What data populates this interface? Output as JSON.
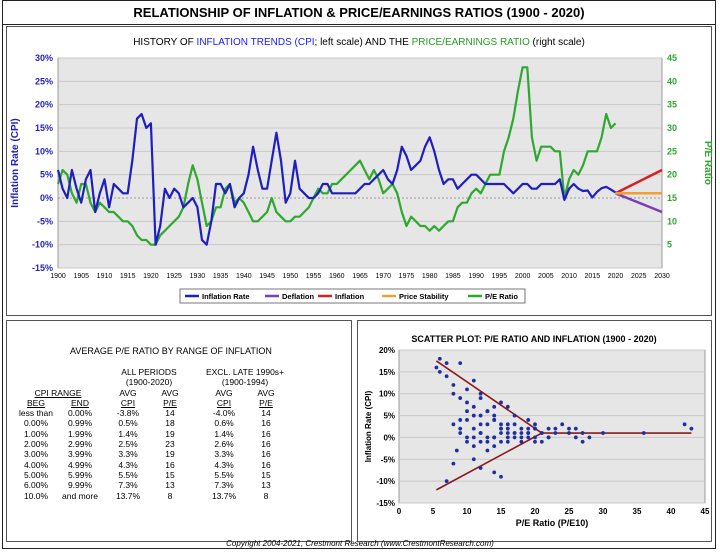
{
  "title": "RELATIONSHIP OF INFLATION & PRICE/EARNINGS RATIOS (1900 - 2020)",
  "history": {
    "subtitle_pre": "HISTORY OF ",
    "subtitle_infl": "INFLATION TRENDS (CPI",
    "subtitle_mid": "; left scale) AND THE ",
    "subtitle_pe": "PRICE/EARNINGS RATIO",
    "subtitle_post": " (right scale)",
    "left_axis_label": "Inflation Rate (CPI)",
    "right_axis_label": "P/E Ratio",
    "legend": [
      "Inflation Rate",
      "Deflation",
      "Inflation",
      "Price Stability",
      "P/E Ratio"
    ]
  },
  "colors": {
    "inflation": "#1f1fbf",
    "pe": "#2ea82e",
    "deflation": "#7b3fb5",
    "inflation_proj": "#d42020",
    "stability": "#f0a030",
    "scatter": "#1f2f9f",
    "envelope": "#8b1a1a"
  },
  "chart_data": [
    {
      "type": "line",
      "x_range": [
        1900,
        2030
      ],
      "x_ticks": [
        1900,
        1905,
        1910,
        1915,
        1920,
        1925,
        1930,
        1935,
        1940,
        1945,
        1950,
        1955,
        1960,
        1965,
        1970,
        1975,
        1980,
        1985,
        1990,
        1995,
        2000,
        2005,
        2010,
        2015,
        2020,
        2025,
        2030
      ],
      "y_left": {
        "range": [
          -15,
          30
        ],
        "ticks": [
          "-15%",
          "-10%",
          "-5%",
          "0%",
          "5%",
          "10%",
          "15%",
          "20%",
          "25%",
          "30%"
        ]
      },
      "y_right": {
        "range": [
          0,
          45
        ],
        "ticks": [
          "5",
          "10",
          "15",
          "20",
          "25",
          "30",
          "35",
          "40",
          "45"
        ]
      },
      "series": [
        {
          "name": "Inflation Rate",
          "axis": "left",
          "x": [
            1900,
            1901,
            1902,
            1903,
            1904,
            1905,
            1906,
            1907,
            1908,
            1909,
            1910,
            1911,
            1912,
            1913,
            1914,
            1915,
            1916,
            1917,
            1918,
            1919,
            1920,
            1921,
            1922,
            1923,
            1924,
            1925,
            1926,
            1927,
            1928,
            1929,
            1930,
            1931,
            1932,
            1933,
            1934,
            1935,
            1936,
            1937,
            1938,
            1939,
            1940,
            1941,
            1942,
            1943,
            1944,
            1945,
            1946,
            1947,
            1948,
            1949,
            1950,
            1951,
            1952,
            1953,
            1954,
            1955,
            1956,
            1957,
            1958,
            1959,
            1960,
            1961,
            1962,
            1963,
            1964,
            1965,
            1966,
            1967,
            1968,
            1969,
            1970,
            1971,
            1972,
            1973,
            1974,
            1975,
            1976,
            1977,
            1978,
            1979,
            1980,
            1981,
            1982,
            1983,
            1984,
            1985,
            1986,
            1987,
            1988,
            1989,
            1990,
            1991,
            1992,
            1993,
            1994,
            1995,
            1996,
            1997,
            1998,
            1999,
            2000,
            2001,
            2002,
            2003,
            2004,
            2005,
            2006,
            2007,
            2008,
            2009,
            2010,
            2011,
            2012,
            2013,
            2014,
            2015,
            2016,
            2017,
            2018,
            2019,
            2020
          ],
          "values": [
            6,
            2,
            0,
            6,
            2,
            -1,
            4,
            6,
            -3,
            1,
            4,
            -2,
            3,
            2,
            1,
            1,
            8,
            17,
            18,
            15,
            16,
            -10,
            -6,
            2,
            0,
            2,
            1,
            -2,
            -1,
            0,
            -2,
            -9,
            -10,
            -5,
            3,
            3,
            1,
            3,
            -2,
            0,
            1,
            5,
            11,
            6,
            2,
            2,
            8,
            14,
            8,
            -1,
            1,
            8,
            2,
            1,
            0,
            0,
            1,
            3,
            3,
            1,
            1,
            1,
            1,
            1,
            1,
            2,
            3,
            3,
            4,
            5,
            6,
            4,
            3,
            6,
            11,
            9,
            6,
            7,
            8,
            11,
            13,
            10,
            6,
            3,
            4,
            4,
            2,
            3,
            4,
            5,
            5,
            4,
            3,
            3,
            3,
            3,
            3,
            2,
            1,
            2,
            3,
            3,
            2,
            2,
            3,
            3,
            3,
            3,
            4,
            -0.4,
            2,
            3,
            2,
            1.5,
            1.6,
            0.1,
            1.3,
            2.1,
            2.4,
            1.8,
            1.2
          ]
        },
        {
          "name": "P/E Ratio",
          "axis": "right",
          "x": [
            1900,
            1901,
            1902,
            1903,
            1904,
            1905,
            1906,
            1907,
            1908,
            1909,
            1910,
            1911,
            1912,
            1913,
            1914,
            1915,
            1916,
            1917,
            1918,
            1919,
            1920,
            1921,
            1922,
            1923,
            1924,
            1925,
            1926,
            1927,
            1928,
            1929,
            1930,
            1931,
            1932,
            1933,
            1934,
            1935,
            1936,
            1937,
            1938,
            1939,
            1940,
            1941,
            1942,
            1943,
            1944,
            1945,
            1946,
            1947,
            1948,
            1949,
            1950,
            1951,
            1952,
            1953,
            1954,
            1955,
            1956,
            1957,
            1958,
            1959,
            1960,
            1961,
            1962,
            1963,
            1964,
            1965,
            1966,
            1967,
            1968,
            1969,
            1970,
            1971,
            1972,
            1973,
            1974,
            1975,
            1976,
            1977,
            1978,
            1979,
            1980,
            1981,
            1982,
            1983,
            1984,
            1985,
            1986,
            1987,
            1988,
            1989,
            1990,
            1991,
            1992,
            1993,
            1994,
            1995,
            1996,
            1997,
            1998,
            1999,
            2000,
            2001,
            2002,
            2003,
            2004,
            2005,
            2006,
            2007,
            2008,
            2009,
            2010,
            2011,
            2012,
            2013,
            2014,
            2015,
            2016,
            2017,
            2018,
            2019,
            2020
          ],
          "values": [
            18,
            21,
            20,
            16,
            14,
            18,
            18,
            14,
            12,
            14,
            13,
            12,
            12,
            11,
            10,
            10,
            9,
            7,
            6,
            6,
            5,
            5,
            7,
            8,
            9,
            10,
            11,
            13,
            18,
            22,
            19,
            14,
            9,
            10,
            13,
            13,
            17,
            18,
            14,
            15,
            14,
            12,
            10,
            10,
            11,
            12,
            15,
            12,
            11,
            10,
            10,
            11,
            11,
            12,
            13,
            15,
            17,
            16,
            16,
            18,
            18,
            19,
            20,
            21,
            22,
            23,
            21,
            19,
            21,
            19,
            16,
            17,
            18,
            16,
            12,
            9,
            11,
            10,
            9,
            9,
            8,
            9,
            8,
            9,
            10,
            10,
            13,
            14,
            14,
            16,
            17,
            16,
            18,
            20,
            20,
            20,
            25,
            28,
            32,
            38,
            43,
            43,
            28,
            23,
            26,
            26,
            26,
            25,
            25,
            15,
            19,
            21,
            20,
            22,
            25,
            25,
            25,
            28,
            33,
            30,
            31
          ]
        },
        {
          "name": "Deflation",
          "axis": "left",
          "x": [
            2020,
            2030
          ],
          "values": [
            1,
            -3
          ]
        },
        {
          "name": "Inflation",
          "axis": "left",
          "x": [
            2020,
            2030
          ],
          "values": [
            1,
            6
          ]
        },
        {
          "name": "Price Stability",
          "axis": "left",
          "x": [
            2020,
            2030
          ],
          "values": [
            1,
            1
          ]
        }
      ]
    },
    {
      "type": "table",
      "title": "AVERAGE P/E RATIO BY RANGE OF INFLATION",
      "group_headers": [
        [
          "ALL PERIODS",
          "(1900-2020)"
        ],
        [
          "EXCL. LATE 1990s+",
          "(1900-1994)"
        ]
      ],
      "range_header": "CPI RANGE",
      "columns": [
        "BEG",
        "END",
        "AVG CPI",
        "AVG P/E",
        "AVG CPI",
        "AVG P/E"
      ],
      "col_top": [
        "AVG",
        "AVG",
        "AVG",
        "AVG"
      ],
      "col_bottom": [
        "CPI",
        "P/E",
        "CPI",
        "P/E"
      ],
      "rows": [
        [
          "less than",
          "0.00%",
          "-3.8%",
          "14",
          "-4.0%",
          "14"
        ],
        [
          "0.00%",
          "0.99%",
          "0.5%",
          "18",
          "0.6%",
          "16"
        ],
        [
          "1.00%",
          "1.99%",
          "1.4%",
          "19",
          "1.4%",
          "16"
        ],
        [
          "2.00%",
          "2.99%",
          "2.5%",
          "23",
          "2.6%",
          "16"
        ],
        [
          "3.00%",
          "3.99%",
          "3.3%",
          "19",
          "3.3%",
          "16"
        ],
        [
          "4.00%",
          "4.99%",
          "4.3%",
          "16",
          "4.3%",
          "16"
        ],
        [
          "5.00%",
          "5.99%",
          "5.5%",
          "15",
          "5.5%",
          "15"
        ],
        [
          "6.00%",
          "9.99%",
          "7.3%",
          "13",
          "7.3%",
          "13"
        ],
        [
          "10.0%",
          "and more",
          "13.7%",
          "8",
          "13.7%",
          "8"
        ]
      ]
    },
    {
      "type": "scatter",
      "title": "SCATTER PLOT: P/E RATIO AND INFLATION (1900 - 2020)",
      "xlabel": "P/E Ratio (P/E10)",
      "ylabel": "Inflation Rate (CPI)",
      "xlim": [
        0,
        45
      ],
      "ylim": [
        -15,
        20
      ],
      "x_ticks": [
        "0",
        "5",
        "10",
        "15",
        "20",
        "25",
        "30",
        "35",
        "40",
        "45"
      ],
      "y_ticks": [
        "-15%",
        "-10%",
        "-5%",
        "0%",
        "5%",
        "10%",
        "15%",
        "20%"
      ],
      "x": [
        5.5,
        6,
        7,
        8,
        9,
        10,
        6,
        7,
        8,
        9,
        10,
        11,
        12,
        9,
        10,
        11,
        12,
        13,
        14,
        15,
        8,
        9,
        10,
        11,
        12,
        13,
        14,
        15,
        16,
        17,
        9,
        10,
        11,
        12,
        13,
        14,
        15,
        16,
        17,
        18,
        19,
        20,
        10,
        11,
        12,
        13,
        14,
        15,
        16,
        17,
        18,
        19,
        20,
        21,
        22,
        11,
        12,
        13,
        14,
        15,
        16,
        17,
        18,
        19,
        20,
        21,
        22,
        23,
        24,
        25,
        26,
        27,
        28,
        30,
        36,
        42,
        43,
        14,
        15,
        16,
        16,
        17,
        18,
        19,
        20,
        21,
        22,
        23,
        12,
        13,
        14,
        19,
        20,
        25,
        26,
        27,
        7,
        8,
        8.5,
        11,
        12,
        13,
        14,
        15
      ],
      "y": [
        16,
        18,
        14,
        12,
        17,
        11,
        15,
        17,
        10,
        9,
        8,
        13,
        10,
        4,
        6,
        7,
        9,
        6,
        5,
        8,
        3,
        2,
        4,
        5,
        3,
        6,
        4,
        3,
        7,
        5,
        1,
        0,
        2,
        1,
        3,
        0,
        2,
        1,
        3,
        2,
        1,
        0,
        -1,
        0,
        1,
        -1,
        0,
        1,
        2,
        0,
        1,
        2,
        -1,
        1,
        2,
        -2,
        -1,
        0,
        -2,
        -1,
        0,
        1,
        -1,
        0,
        2,
        1,
        0,
        2,
        3,
        1,
        0,
        1,
        0,
        1,
        1,
        3,
        2,
        4,
        2,
        3,
        -1,
        1,
        0,
        1,
        2,
        -1,
        0,
        1,
        5,
        6,
        7,
        4,
        3,
        2,
        2,
        -1,
        -10,
        -6,
        -3,
        -5,
        -7,
        -3,
        -8,
        -9
      ]
    }
  ],
  "copyright": "Copyright 2004-2021, Crestmont Research (www.CrestmontResearch.com)"
}
